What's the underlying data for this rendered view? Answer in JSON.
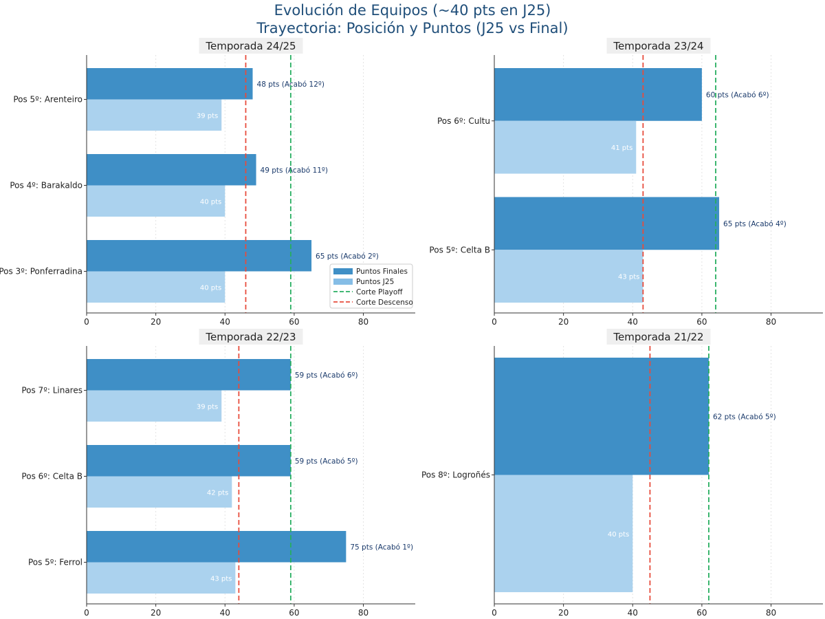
{
  "title": {
    "line1": "Evolución de Equipos (~40 pts en J25)",
    "line2": "Trayectoria: Posición y Puntos (J25 vs Final)"
  },
  "colors": {
    "final": "#3f8fc6",
    "j25": "#abd2ee",
    "legend_j25": "#85bde6",
    "playoff": "#27ae60",
    "descenso": "#e74c3c"
  },
  "legend": {
    "final": "Puntos Finales",
    "j25": "Puntos J25",
    "playoff": "Corte Playoff",
    "descenso": "Corte Descenso"
  },
  "chart_data": [
    {
      "type": "bar",
      "title": "Temporada 24/25",
      "xlim": [
        0,
        95
      ],
      "xticks": [
        0,
        20,
        40,
        60,
        80
      ],
      "playoff_cut": 59,
      "descenso_cut": 46,
      "legend_position": "lower-right",
      "categories": [
        "Pos 5º: Arenteiro",
        "Pos 4º: Barakaldo",
        "Pos 3º: Ponferradina"
      ],
      "series": [
        {
          "name": "Puntos Finales",
          "values": [
            48,
            49,
            65
          ]
        },
        {
          "name": "Puntos J25",
          "values": [
            39,
            40,
            40
          ]
        }
      ],
      "final_labels": [
        "48 pts (Acabó 12º)",
        "49 pts (Acabó 11º)",
        "65 pts (Acabó 2º)"
      ],
      "j25_labels": [
        "39 pts",
        "40 pts",
        "40 pts"
      ]
    },
    {
      "type": "bar",
      "title": "Temporada 23/24",
      "xlim": [
        0,
        95
      ],
      "xticks": [
        0,
        20,
        40,
        60,
        80
      ],
      "playoff_cut": 64,
      "descenso_cut": 43,
      "categories": [
        "Pos 6º: Cultu",
        "Pos 5º: Celta B"
      ],
      "series": [
        {
          "name": "Puntos Finales",
          "values": [
            60,
            65
          ]
        },
        {
          "name": "Puntos J25",
          "values": [
            41,
            43
          ]
        }
      ],
      "final_labels": [
        "60 pts (Acabó 6º)",
        "65 pts (Acabó 4º)"
      ],
      "j25_labels": [
        "41 pts",
        "43 pts"
      ]
    },
    {
      "type": "bar",
      "title": "Temporada 22/23",
      "xlim": [
        0,
        95
      ],
      "xticks": [
        0,
        20,
        40,
        60,
        80
      ],
      "playoff_cut": 59,
      "descenso_cut": 44,
      "categories": [
        "Pos 7º: Linares",
        "Pos 6º: Celta B",
        "Pos 5º: Ferrol"
      ],
      "series": [
        {
          "name": "Puntos Finales",
          "values": [
            59,
            59,
            75
          ]
        },
        {
          "name": "Puntos J25",
          "values": [
            39,
            42,
            43
          ]
        }
      ],
      "final_labels": [
        "59 pts (Acabó 6º)",
        "59 pts (Acabó 5º)",
        "75 pts (Acabó 1º)"
      ],
      "j25_labels": [
        "39 pts",
        "42 pts",
        "43 pts"
      ]
    },
    {
      "type": "bar",
      "title": "Temporada 21/22",
      "xlim": [
        0,
        95
      ],
      "xticks": [
        0,
        20,
        40,
        60,
        80
      ],
      "playoff_cut": 62,
      "descenso_cut": 45,
      "categories": [
        "Pos 8º: Logroñés"
      ],
      "series": [
        {
          "name": "Puntos Finales",
          "values": [
            62
          ]
        },
        {
          "name": "Puntos J25",
          "values": [
            40
          ]
        }
      ],
      "final_labels": [
        "62 pts (Acabó 5º)"
      ],
      "j25_labels": [
        "40 pts"
      ]
    }
  ]
}
